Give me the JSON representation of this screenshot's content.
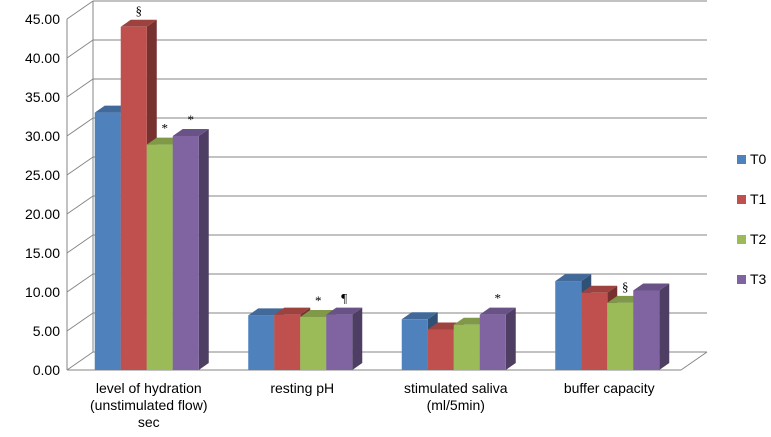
{
  "chart_data": {
    "type": "bar",
    "style": "3d-clustered-column",
    "categories": [
      [
        "level of hydration",
        "(unstimulated flow)",
        "sec"
      ],
      [
        "resting pH"
      ],
      [
        "stimulated saliva",
        "(ml/5min)"
      ],
      [
        "buffer capacity"
      ]
    ],
    "series": [
      {
        "name": "T0",
        "color": "#4F81BD",
        "values": [
          33.0,
          7.0,
          6.5,
          11.4
        ]
      },
      {
        "name": "T1",
        "color": "#C0504D",
        "values": [
          44.0,
          7.1,
          5.2,
          9.9
        ]
      },
      {
        "name": "T2",
        "color": "#9BBB59",
        "values": [
          28.9,
          6.8,
          5.8,
          8.6
        ]
      },
      {
        "name": "T3",
        "color": "#8064A2",
        "values": [
          30.0,
          7.1,
          7.1,
          10.2
        ]
      }
    ],
    "ylim": [
      0,
      45
    ],
    "yticks": [
      "0.00",
      "5.00",
      "10.00",
      "15.00",
      "20.00",
      "25.00",
      "30.00",
      "35.00",
      "40.00",
      "45.00"
    ],
    "grid": true,
    "legend_position": "right",
    "annotations": [
      {
        "category": 0,
        "series": 1,
        "text": "§"
      },
      {
        "category": 0,
        "series": 2,
        "text": "*"
      },
      {
        "category": 0,
        "series": 3,
        "text": "*"
      },
      {
        "category": 1,
        "series": 2,
        "text": "*"
      },
      {
        "category": 1,
        "series": 3,
        "text": "¶"
      },
      {
        "category": 2,
        "series": 3,
        "text": "*"
      },
      {
        "category": 3,
        "series": 2,
        "text": "§"
      }
    ]
  }
}
